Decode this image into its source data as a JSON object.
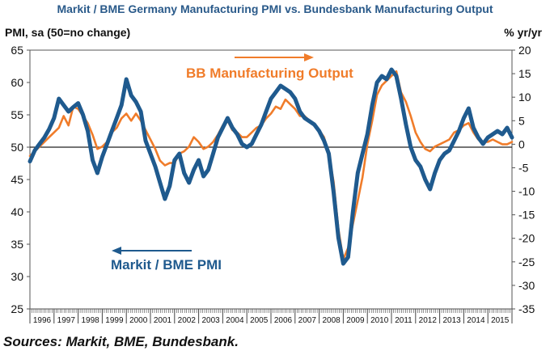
{
  "chart_data": {
    "type": "line",
    "title": "Markit / BME Germany Manufacturing PMI vs. Bundesbank Manufacturing Output",
    "ylabel_left": "PMI, sa (50=no change)",
    "ylabel_right": "% yr/yr",
    "source": "Sources: Markit, BME, Bundesbank.",
    "y_left": {
      "min": 25,
      "max": 65,
      "ticks": [
        25,
        30,
        35,
        40,
        45,
        50,
        55,
        60,
        65
      ]
    },
    "y_right": {
      "min": -35,
      "max": 20,
      "ticks": [
        -35,
        -30,
        -25,
        -20,
        -15,
        -10,
        -5,
        0,
        5,
        10,
        15,
        20
      ]
    },
    "x_range": [
      1996.0,
      2016.0
    ],
    "reference_line": 50,
    "years": [
      "1996",
      "1997",
      "1998",
      "1999",
      "2000",
      "2001",
      "2002",
      "2003",
      "2004",
      "2005",
      "2006",
      "2007",
      "2008",
      "2009",
      "2010",
      "2011",
      "2012",
      "2013",
      "2014",
      "2015"
    ],
    "colors": {
      "pmi": "#1f5a8e",
      "output": "#f07c2a"
    },
    "annotations": [
      {
        "text": "BB Manufacturing Output",
        "series": "output",
        "arrow": "right"
      },
      {
        "text": "Markit / BME PMI",
        "series": "pmi",
        "arrow": "left"
      }
    ],
    "series": [
      {
        "name": "Markit / BME PMI",
        "axis": "left",
        "color": "#1f5a8e",
        "x": [
          1996.0,
          1996.2,
          1996.4,
          1996.6,
          1996.8,
          1997.0,
          1997.2,
          1997.4,
          1997.6,
          1997.8,
          1998.0,
          1998.2,
          1998.4,
          1998.6,
          1998.8,
          1999.0,
          1999.2,
          1999.4,
          1999.6,
          1999.8,
          2000.0,
          2000.2,
          2000.4,
          2000.6,
          2000.8,
          2001.0,
          2001.2,
          2001.4,
          2001.6,
          2001.8,
          2002.0,
          2002.2,
          2002.4,
          2002.6,
          2002.8,
          2003.0,
          2003.2,
          2003.4,
          2003.6,
          2003.8,
          2004.0,
          2004.2,
          2004.4,
          2004.6,
          2004.8,
          2005.0,
          2005.2,
          2005.4,
          2005.6,
          2005.8,
          2006.0,
          2006.2,
          2006.4,
          2006.6,
          2006.8,
          2007.0,
          2007.2,
          2007.4,
          2007.6,
          2007.8,
          2008.0,
          2008.2,
          2008.4,
          2008.6,
          2008.8,
          2009.0,
          2009.2,
          2009.4,
          2009.6,
          2009.8,
          2010.0,
          2010.2,
          2010.4,
          2010.6,
          2010.8,
          2011.0,
          2011.2,
          2011.4,
          2011.6,
          2011.8,
          2012.0,
          2012.2,
          2012.4,
          2012.6,
          2012.8,
          2013.0,
          2013.2,
          2013.4,
          2013.6,
          2013.8,
          2014.0,
          2014.2,
          2014.4,
          2014.6,
          2014.8,
          2015.0,
          2015.2,
          2015.4,
          2015.6,
          2015.8,
          2016.0
        ],
        "y": [
          47.8,
          49.5,
          50.5,
          51.5,
          52.8,
          54.5,
          57.5,
          56.5,
          55.5,
          56.2,
          56.8,
          55.0,
          52.5,
          48.0,
          46.0,
          48.5,
          50.5,
          52.5,
          54.5,
          56.5,
          60.5,
          58.0,
          57.0,
          55.5,
          51.0,
          49.0,
          47.0,
          44.5,
          42.0,
          44.0,
          48.0,
          49.0,
          46.0,
          44.5,
          46.5,
          48.0,
          45.5,
          46.5,
          49.0,
          51.5,
          53.0,
          54.5,
          53.0,
          52.0,
          50.5,
          50.0,
          50.5,
          52.0,
          53.5,
          55.5,
          57.5,
          58.5,
          59.5,
          59.0,
          58.5,
          57.5,
          55.5,
          54.5,
          54.0,
          53.5,
          52.5,
          51.0,
          49.0,
          43.0,
          36.0,
          32.0,
          33.0,
          40.0,
          46.0,
          49.0,
          52.0,
          56.5,
          60.0,
          61.0,
          60.5,
          62.0,
          61.0,
          57.5,
          53.5,
          50.0,
          48.0,
          47.0,
          45.0,
          43.5,
          46.0,
          48.0,
          49.0,
          49.5,
          51.0,
          52.5,
          54.5,
          56.0,
          53.0,
          51.5,
          50.5,
          51.5,
          52.0,
          52.5,
          52.0,
          53.0,
          51.5
        ]
      },
      {
        "name": "BB Manufacturing Output",
        "axis": "right",
        "color": "#f07c2a",
        "x": [
          1996.0,
          1996.2,
          1996.4,
          1996.6,
          1996.8,
          1997.0,
          1997.2,
          1997.4,
          1997.6,
          1997.8,
          1998.0,
          1998.2,
          1998.4,
          1998.6,
          1998.8,
          1999.0,
          1999.2,
          1999.4,
          1999.6,
          1999.8,
          2000.0,
          2000.2,
          2000.4,
          2000.6,
          2000.8,
          2001.0,
          2001.2,
          2001.4,
          2001.6,
          2001.8,
          2002.0,
          2002.2,
          2002.4,
          2002.6,
          2002.8,
          2003.0,
          2003.2,
          2003.4,
          2003.6,
          2003.8,
          2004.0,
          2004.2,
          2004.4,
          2004.6,
          2004.8,
          2005.0,
          2005.2,
          2005.4,
          2005.6,
          2005.8,
          2006.0,
          2006.2,
          2006.4,
          2006.6,
          2006.8,
          2007.0,
          2007.2,
          2007.4,
          2007.6,
          2007.8,
          2008.0,
          2008.2,
          2008.4,
          2008.6,
          2008.8,
          2009.0,
          2009.2,
          2009.4,
          2009.6,
          2009.8,
          2010.0,
          2010.2,
          2010.4,
          2010.6,
          2010.8,
          2011.0,
          2011.2,
          2011.4,
          2011.6,
          2011.8,
          2012.0,
          2012.2,
          2012.4,
          2012.6,
          2012.8,
          2013.0,
          2013.2,
          2013.4,
          2013.6,
          2013.8,
          2014.0,
          2014.2,
          2014.4,
          2014.6,
          2014.8,
          2015.0,
          2015.2,
          2015.4,
          2015.6,
          2015.8,
          2016.0
        ],
        "y": [
          -2.5,
          -1.5,
          -0.5,
          0.5,
          1.5,
          2.5,
          3.5,
          6.0,
          4.0,
          8.0,
          7.5,
          6.0,
          4.5,
          2.0,
          -1.0,
          -0.5,
          0.5,
          2.5,
          3.5,
          5.5,
          6.5,
          5.0,
          6.5,
          5.0,
          3.0,
          1.0,
          -1.0,
          -3.5,
          -4.5,
          -4.0,
          -4.0,
          -2.0,
          -1.5,
          -0.5,
          1.5,
          0.5,
          -1.0,
          -0.5,
          0.5,
          2.0,
          4.0,
          5.0,
          3.0,
          2.5,
          1.5,
          1.5,
          2.5,
          3.5,
          4.0,
          5.5,
          6.5,
          8.0,
          7.5,
          9.5,
          8.5,
          7.5,
          6.0,
          6.0,
          5.0,
          4.0,
          3.0,
          1.5,
          -2.0,
          -8.0,
          -18.0,
          -24.5,
          -22.0,
          -17.0,
          -12.0,
          -7.0,
          0.0,
          5.0,
          10.5,
          12.5,
          13.5,
          14.5,
          15.5,
          11.0,
          9.0,
          6.0,
          2.5,
          0.5,
          -1.0,
          -1.5,
          -0.5,
          0.0,
          0.5,
          1.0,
          2.5,
          3.0,
          4.0,
          4.5,
          2.5,
          1.0,
          0.5,
          0.5,
          1.0,
          0.5,
          0.0,
          0.0,
          0.5
        ]
      }
    ]
  }
}
